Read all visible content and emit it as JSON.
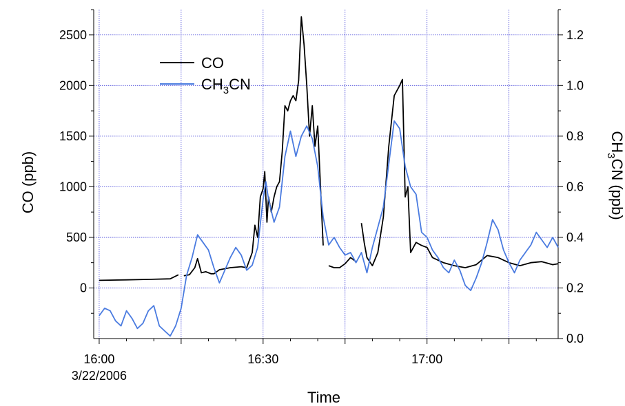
{
  "chart_data": {
    "type": "line",
    "xlabel": "Time",
    "x_ticks": [
      {
        "t": "16:00",
        "label": "16:00",
        "sublabel": "3/22/2006"
      },
      {
        "t": "16:15",
        "label": ""
      },
      {
        "t": "16:30",
        "label": "16:30"
      },
      {
        "t": "16:45",
        "label": ""
      },
      {
        "t": "17:00",
        "label": "17:00"
      },
      {
        "t": "17:15",
        "label": ""
      }
    ],
    "xlim": [
      "15:59",
      "17:24"
    ],
    "left_axis": {
      "label": "CO (ppb)",
      "ylim": [
        -500,
        2750
      ],
      "ticks": [
        0,
        500,
        1000,
        1500,
        2000,
        2500
      ]
    },
    "right_axis": {
      "label_main": "CH",
      "label_sub": "3",
      "label_rest": "CN (ppb)",
      "ylim": [
        0,
        1.3
      ],
      "ticks": [
        "0.0",
        "0.2",
        "0.4",
        "0.6",
        "0.8",
        "1.0",
        "1.2"
      ]
    },
    "grid": true,
    "legend": {
      "placement": "top-left"
    },
    "series": [
      {
        "name": "CO",
        "legend_main": "CO",
        "axis": "left",
        "color": "#000000",
        "points": [
          [
            "16:00",
            75
          ],
          [
            "16:05",
            80
          ],
          [
            "16:09",
            85
          ],
          [
            "16:13",
            90
          ],
          [
            "16:14.5",
            130
          ],
          [
            "null",
            null
          ],
          [
            "16:15.5",
            120
          ],
          [
            "16:16.5",
            130
          ],
          [
            "16:17.5",
            200
          ],
          [
            "16:18",
            290
          ],
          [
            "16:18.7",
            150
          ],
          [
            "16:19.5",
            160
          ],
          [
            "16:20.5",
            140
          ],
          [
            "16:21",
            140
          ],
          [
            "16:22",
            180
          ],
          [
            "16:24",
            200
          ],
          [
            "16:26",
            210
          ],
          [
            "16:27",
            200
          ],
          [
            "16:28",
            350
          ],
          [
            "16:28.5",
            620
          ],
          [
            "16:29",
            500
          ],
          [
            "16:29.5",
            900
          ],
          [
            "16:30",
            980
          ],
          [
            "16:30.3",
            1150
          ],
          [
            "16:30.7",
            650
          ],
          [
            "16:31",
            900
          ],
          [
            "16:31.5",
            750
          ],
          [
            "16:32",
            900
          ],
          [
            "16:32.5",
            1000
          ],
          [
            "16:33",
            1050
          ],
          [
            "16:33.5",
            1350
          ],
          [
            "16:34",
            1800
          ],
          [
            "16:34.5",
            1750
          ],
          [
            "16:35",
            1850
          ],
          [
            "16:35.5",
            1900
          ],
          [
            "16:36",
            1850
          ],
          [
            "16:36.5",
            2050
          ],
          [
            "16:37",
            2680
          ],
          [
            "16:37.5",
            2400
          ],
          [
            "16:38",
            2000
          ],
          [
            "16:38.5",
            1500
          ],
          [
            "16:39",
            1800
          ],
          [
            "16:39.5",
            1400
          ],
          [
            "16:40",
            1600
          ],
          [
            "16:40.5",
            1000
          ],
          [
            "16:41",
            420
          ],
          [
            "null",
            null
          ],
          [
            "16:42",
            220
          ],
          [
            "16:43",
            200
          ],
          [
            "16:44",
            200
          ],
          [
            "16:45",
            240
          ],
          [
            "16:46",
            300
          ],
          [
            "16:47",
            260
          ],
          [
            "null",
            null
          ],
          [
            "16:48",
            640
          ],
          [
            "16:48.5",
            450
          ],
          [
            "16:49",
            300
          ],
          [
            "16:50",
            220
          ],
          [
            "16:51",
            350
          ],
          [
            "16:52",
            700
          ],
          [
            "16:53",
            1400
          ],
          [
            "16:54",
            1900
          ],
          [
            "16:55",
            2000
          ],
          [
            "16:55.5",
            2060
          ],
          [
            "16:56",
            900
          ],
          [
            "16:56.5",
            1000
          ],
          [
            "16:57",
            350
          ],
          [
            "16:58",
            450
          ],
          [
            "16:59",
            420
          ],
          [
            "17:00",
            400
          ],
          [
            "17:01",
            300
          ],
          [
            "17:03",
            250
          ],
          [
            "17:05",
            220
          ],
          [
            "17:07",
            200
          ],
          [
            "17:09",
            230
          ],
          [
            "17:11",
            320
          ],
          [
            "17:13",
            300
          ],
          [
            "17:15",
            250
          ],
          [
            "17:17",
            220
          ],
          [
            "17:19",
            250
          ],
          [
            "17:21",
            260
          ],
          [
            "17:23",
            230
          ],
          [
            "17:24",
            240
          ]
        ]
      },
      {
        "name": "CH3CN",
        "legend_main": "CH",
        "legend_sub": "3",
        "legend_rest": "CN",
        "axis": "right",
        "color": "#4a7be0",
        "points": [
          [
            "16:00",
            0.09
          ],
          [
            "16:01",
            0.12
          ],
          [
            "16:02",
            0.11
          ],
          [
            "16:03",
            0.07
          ],
          [
            "16:04",
            0.05
          ],
          [
            "16:05",
            0.11
          ],
          [
            "16:06",
            0.08
          ],
          [
            "16:07",
            0.04
          ],
          [
            "16:08",
            0.06
          ],
          [
            "16:09",
            0.11
          ],
          [
            "16:10",
            0.13
          ],
          [
            "16:11",
            0.05
          ],
          [
            "16:12",
            0.03
          ],
          [
            "16:13",
            0.01
          ],
          [
            "16:14",
            0.05
          ],
          [
            "16:15",
            0.12
          ],
          [
            "16:16",
            0.25
          ],
          [
            "16:17",
            0.32
          ],
          [
            "16:18",
            0.41
          ],
          [
            "16:19",
            0.38
          ],
          [
            "16:20",
            0.35
          ],
          [
            "16:21",
            0.28
          ],
          [
            "16:22",
            0.22
          ],
          [
            "16:23",
            0.27
          ],
          [
            "16:24",
            0.32
          ],
          [
            "16:25",
            0.36
          ],
          [
            "16:26",
            0.33
          ],
          [
            "16:27",
            0.27
          ],
          [
            "16:28",
            0.29
          ],
          [
            "16:29",
            0.36
          ],
          [
            "16:30",
            0.55
          ],
          [
            "16:30.5",
            0.62
          ],
          [
            "16:31",
            0.55
          ],
          [
            "16:32",
            0.46
          ],
          [
            "16:33",
            0.52
          ],
          [
            "16:34",
            0.72
          ],
          [
            "16:35",
            0.82
          ],
          [
            "16:36",
            0.72
          ],
          [
            "16:37",
            0.8
          ],
          [
            "16:38",
            0.84
          ],
          [
            "16:39",
            0.79
          ],
          [
            "16:40",
            0.68
          ],
          [
            "16:41",
            0.48
          ],
          [
            "16:42",
            0.37
          ],
          [
            "16:43",
            0.4
          ],
          [
            "16:44",
            0.36
          ],
          [
            "16:45",
            0.33
          ],
          [
            "16:46",
            0.34
          ],
          [
            "16:47",
            0.3
          ],
          [
            "16:48",
            0.34
          ],
          [
            "16:49",
            0.26
          ],
          [
            "16:50",
            0.36
          ],
          [
            "16:52",
            0.52
          ],
          [
            "16:54",
            0.86
          ],
          [
            "16:55",
            0.83
          ],
          [
            "16:56",
            0.68
          ],
          [
            "16:57",
            0.6
          ],
          [
            "16:58",
            0.57
          ],
          [
            "16:59",
            0.42
          ],
          [
            "17:00",
            0.4
          ],
          [
            "17:01",
            0.35
          ],
          [
            "17:02",
            0.32
          ],
          [
            "17:03",
            0.28
          ],
          [
            "17:04",
            0.26
          ],
          [
            "17:05",
            0.31
          ],
          [
            "17:06",
            0.27
          ],
          [
            "17:07",
            0.21
          ],
          [
            "17:08",
            0.19
          ],
          [
            "17:09",
            0.24
          ],
          [
            "17:10",
            0.3
          ],
          [
            "17:11",
            0.38
          ],
          [
            "17:12",
            0.47
          ],
          [
            "17:13",
            0.43
          ],
          [
            "17:14",
            0.35
          ],
          [
            "17:15",
            0.3
          ],
          [
            "17:16",
            0.26
          ],
          [
            "17:17",
            0.31
          ],
          [
            "17:18",
            0.34
          ],
          [
            "17:19",
            0.37
          ],
          [
            "17:20",
            0.42
          ],
          [
            "17:21",
            0.39
          ],
          [
            "17:22",
            0.36
          ],
          [
            "17:23",
            0.4
          ],
          [
            "17:24",
            0.36
          ]
        ]
      }
    ]
  }
}
